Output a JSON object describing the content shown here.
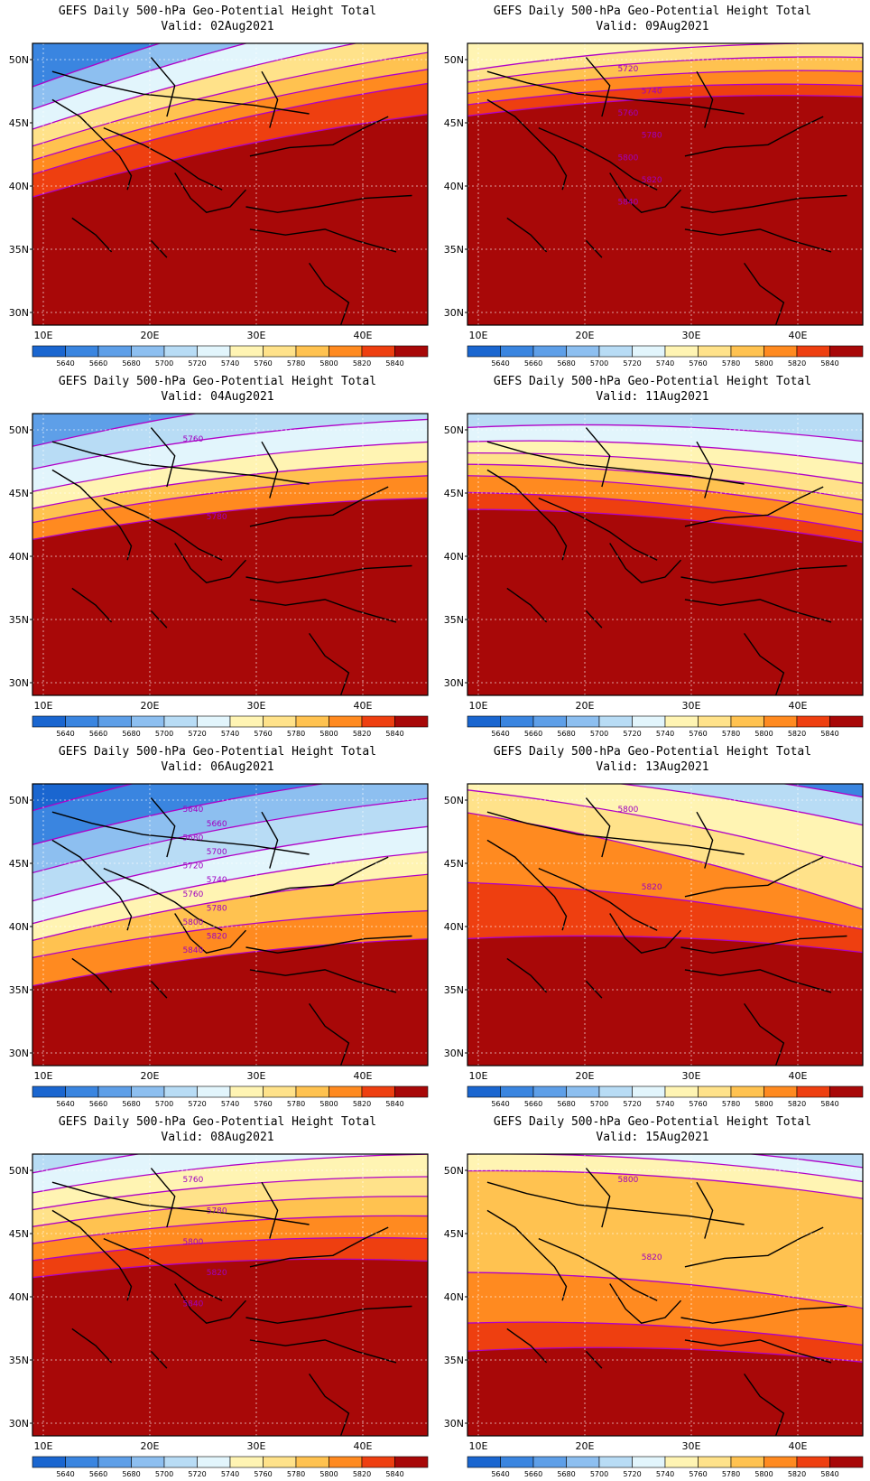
{
  "colorbar": {
    "levels": [
      "5640",
      "5660",
      "5680",
      "5700",
      "5720",
      "5740",
      "5760",
      "5780",
      "5800",
      "5820",
      "5840"
    ],
    "colors": [
      "#1a66d0",
      "#3a85e0",
      "#5e9fe8",
      "#8dbff0",
      "#b8dcf5",
      "#e2f5fc",
      "#fff4b3",
      "#ffe28a",
      "#ffc250",
      "#ff8a20",
      "#ee3f10",
      "#a80808"
    ]
  },
  "axes": {
    "lat_labels": [
      "50N",
      "45N",
      "40N",
      "35N",
      "30N"
    ],
    "lon_labels": [
      "10E",
      "20E",
      "30E",
      "40E"
    ]
  },
  "panels": [
    {
      "title": "GEFS Daily 500-hPa Geo-Potential Height Total",
      "valid": "Valid: 02Aug2021",
      "band_colors": [
        "#3a85e0",
        "#8dbff0",
        "#e2f5fc",
        "#ffe28a",
        "#ffc250",
        "#ff8a20",
        "#ee3f10",
        "#a80808"
      ],
      "contour_labels": []
    },
    {
      "title": "GEFS Daily 500-hPa Geo-Potential Height Total",
      "valid": "Valid: 09Aug2021",
      "band_colors": [
        "#fff4b3",
        "#ffe28a",
        "#ffc250",
        "#ff8a20",
        "#ee3f10",
        "#a80808"
      ],
      "contour_labels": [
        "5720",
        "5740",
        "5760",
        "5780",
        "5800",
        "5820",
        "5840"
      ]
    },
    {
      "title": "GEFS Daily 500-hPa Geo-Potential Height Total",
      "valid": "Valid: 04Aug2021",
      "band_colors": [
        "#5e9fe8",
        "#b8dcf5",
        "#e2f5fc",
        "#fff4b3",
        "#ffc250",
        "#ff8a20",
        "#a80808"
      ],
      "contour_labels": [
        "5760",
        "5780"
      ]
    },
    {
      "title": "GEFS Daily 500-hPa Geo-Potential Height Total",
      "valid": "Valid: 11Aug2021",
      "band_colors": [
        "#b8dcf5",
        "#e2f5fc",
        "#fff4b3",
        "#ffe28a",
        "#ffc250",
        "#ff8a20",
        "#ee3f10",
        "#a80808"
      ],
      "contour_labels": []
    },
    {
      "title": "GEFS Daily 500-hPa Geo-Potential Height Total",
      "valid": "Valid: 06Aug2021",
      "band_colors": [
        "#1a66d0",
        "#3a85e0",
        "#8dbff0",
        "#b8dcf5",
        "#e2f5fc",
        "#fff4b3",
        "#ffc250",
        "#ff8a20",
        "#a80808"
      ],
      "contour_labels": [
        "5640",
        "5660",
        "5680",
        "5700",
        "5720",
        "5740",
        "5760",
        "5780",
        "5800",
        "5820",
        "5840"
      ]
    },
    {
      "title": "GEFS Daily 500-hPa Geo-Potential Height Total",
      "valid": "Valid: 13Aug2021",
      "band_colors": [
        "#3a85e0",
        "#b8dcf5",
        "#fff4b3",
        "#ffe28a",
        "#ff8a20",
        "#ee3f10",
        "#a80808"
      ],
      "contour_labels": [
        "5800",
        "5820"
      ]
    },
    {
      "title": "GEFS Daily 500-hPa Geo-Potential Height Total",
      "valid": "Valid: 08Aug2021",
      "band_colors": [
        "#b8dcf5",
        "#e2f5fc",
        "#fff4b3",
        "#ffe28a",
        "#ffc250",
        "#ff8a20",
        "#ee3f10",
        "#a80808"
      ],
      "contour_labels": [
        "5760",
        "5780",
        "5800",
        "5820",
        "5840"
      ]
    },
    {
      "title": "GEFS Daily 500-hPa Geo-Potential Height Total",
      "valid": "Valid: 15Aug2021",
      "band_colors": [
        "#3a85e0",
        "#b8dcf5",
        "#e2f5fc",
        "#fff4b3",
        "#ffc250",
        "#ff8a20",
        "#ee3f10",
        "#a80808"
      ],
      "contour_labels": [
        "5800",
        "5820"
      ]
    }
  ]
}
